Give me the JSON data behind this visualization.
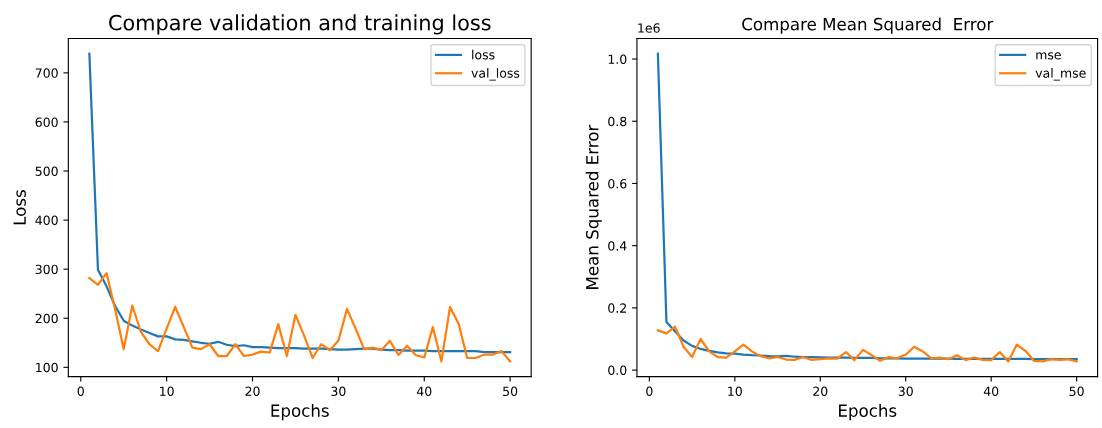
{
  "chart_data": [
    {
      "type": "line",
      "title": "Compare validation and training loss",
      "xlabel": "Epochs",
      "ylabel": "Loss",
      "x": [
        1,
        2,
        3,
        4,
        5,
        6,
        7,
        8,
        9,
        10,
        11,
        12,
        13,
        14,
        15,
        16,
        17,
        18,
        19,
        20,
        21,
        22,
        23,
        24,
        25,
        26,
        27,
        28,
        29,
        30,
        31,
        32,
        33,
        34,
        35,
        36,
        37,
        38,
        39,
        40,
        41,
        42,
        43,
        44,
        45,
        46,
        47,
        48,
        49,
        50
      ],
      "series": [
        {
          "name": "loss",
          "color": "#1f77b4",
          "values": [
            739,
            299,
            265,
            225,
            195,
            185,
            177,
            170,
            163,
            163,
            157,
            156,
            153,
            150,
            148,
            152,
            146,
            143,
            145,
            141,
            141,
            140,
            139,
            139,
            139,
            138,
            138,
            138,
            137,
            136,
            136,
            137,
            138,
            138,
            136,
            135,
            135,
            134,
            134,
            134,
            133,
            133,
            133,
            133,
            133,
            133,
            131,
            131,
            131,
            131
          ]
        },
        {
          "name": "val_loss",
          "color": "#ff7f0e",
          "values": [
            282,
            268,
            292,
            218,
            137,
            226,
            172,
            147,
            133,
            179,
            223,
            182,
            140,
            137,
            147,
            123,
            123,
            147,
            123,
            126,
            132,
            130,
            188,
            123,
            207,
            165,
            119,
            147,
            135,
            154,
            219,
            179,
            137,
            140,
            135,
            154,
            125,
            144,
            125,
            120,
            182,
            112,
            223,
            189,
            119,
            119,
            126,
            126,
            133,
            112
          ]
        }
      ],
      "xlim": [
        -1.45,
        52.45
      ],
      "xticks": [
        0,
        10,
        20,
        30,
        40,
        50
      ],
      "ylim": [
        81,
        770
      ],
      "yticks": [
        100,
        200,
        300,
        400,
        500,
        600,
        700
      ],
      "grid": false,
      "legend": "top right",
      "line_style": "solid",
      "marker": "none"
    },
    {
      "type": "line",
      "title": "Compare Mean Squared  Error",
      "xlabel": "Epochs",
      "ylabel": "Mean Squared Error",
      "annotations": [
        "1e6"
      ],
      "x": [
        1,
        2,
        3,
        4,
        5,
        6,
        7,
        8,
        9,
        10,
        11,
        12,
        13,
        14,
        15,
        16,
        17,
        18,
        19,
        20,
        21,
        22,
        23,
        24,
        25,
        26,
        27,
        28,
        29,
        30,
        31,
        32,
        33,
        34,
        35,
        36,
        37,
        38,
        39,
        40,
        41,
        42,
        43,
        44,
        45,
        46,
        47,
        48,
        49,
        50
      ],
      "series": [
        {
          "name": "mse",
          "color": "#1f77b4",
          "values": [
            1.017,
            0.155,
            0.125,
            0.095,
            0.078,
            0.068,
            0.062,
            0.057,
            0.054,
            0.053,
            0.05,
            0.048,
            0.047,
            0.045,
            0.044,
            0.046,
            0.043,
            0.042,
            0.042,
            0.041,
            0.04,
            0.04,
            0.04,
            0.039,
            0.039,
            0.039,
            0.038,
            0.038,
            0.038,
            0.037,
            0.037,
            0.037,
            0.037,
            0.037,
            0.037,
            0.036,
            0.036,
            0.036,
            0.036,
            0.036,
            0.036,
            0.036,
            0.036,
            0.036,
            0.035,
            0.035,
            0.035,
            0.035,
            0.035,
            0.035
          ]
        },
        {
          "name": "val_mse",
          "color": "#ff7f0e",
          "values": [
            0.128,
            0.118,
            0.14,
            0.075,
            0.042,
            0.1,
            0.06,
            0.042,
            0.04,
            0.06,
            0.082,
            0.06,
            0.045,
            0.038,
            0.042,
            0.034,
            0.033,
            0.042,
            0.033,
            0.035,
            0.038,
            0.037,
            0.058,
            0.032,
            0.065,
            0.048,
            0.03,
            0.042,
            0.038,
            0.05,
            0.075,
            0.06,
            0.038,
            0.04,
            0.035,
            0.048,
            0.032,
            0.04,
            0.033,
            0.032,
            0.058,
            0.028,
            0.082,
            0.062,
            0.03,
            0.028,
            0.035,
            0.033,
            0.035,
            0.028
          ]
        }
      ],
      "xlim": [
        -1.45,
        52.45
      ],
      "xticks": [
        0,
        10,
        20,
        30,
        40,
        50
      ],
      "ylim": [
        -0.021,
        1.066
      ],
      "yticks": [
        {
          "value": 0,
          "label": "0.0"
        },
        0.2,
        0.4,
        0.6,
        0.8,
        {
          "value": 1,
          "label": "1.0"
        }
      ],
      "grid": false,
      "legend": "top right",
      "line_style": "solid",
      "marker": "none"
    }
  ]
}
